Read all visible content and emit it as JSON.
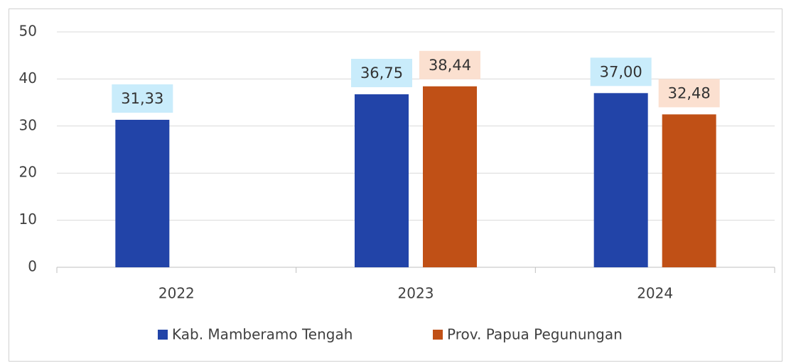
{
  "chart_data": {
    "type": "bar",
    "categories": [
      "2022",
      "2023",
      "2024"
    ],
    "series": [
      {
        "name": "Kab. Mamberamo Tengah",
        "color": "#2244a8",
        "label_bg": "#c9ecfb",
        "values": [
          31.33,
          36.75,
          37.0
        ],
        "value_labels": [
          "31,33",
          "36,75",
          "37,00"
        ]
      },
      {
        "name": "Prov. Papua Pegunungan",
        "color": "#c05016",
        "label_bg": "#fbe0d0",
        "values": [
          null,
          38.44,
          32.48
        ],
        "value_labels": [
          null,
          "38,44",
          "32,48"
        ]
      }
    ],
    "ylim": [
      0,
      50
    ],
    "yticks": [
      0,
      10,
      20,
      30,
      40,
      50
    ],
    "grid": true,
    "legend": "bottom"
  }
}
